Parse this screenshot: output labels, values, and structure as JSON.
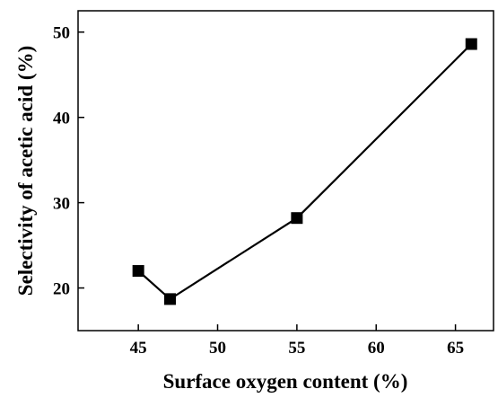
{
  "chart_data": {
    "type": "line",
    "title": "",
    "xlabel": "Surface oxygen content (%)",
    "ylabel": "Selectivity of acetic acid (%)",
    "xlim": [
      41.2,
      67.4
    ],
    "ylim": [
      15,
      52.5
    ],
    "xticks": [
      45,
      50,
      55,
      60,
      65
    ],
    "yticks": [
      20,
      30,
      40,
      50
    ],
    "grid": false,
    "legend": "none",
    "marker": "square",
    "color": "#000000",
    "series": [
      {
        "x": [
          45,
          47,
          55,
          66
        ],
        "y": [
          22.0,
          18.7,
          28.2,
          48.6
        ]
      }
    ]
  }
}
